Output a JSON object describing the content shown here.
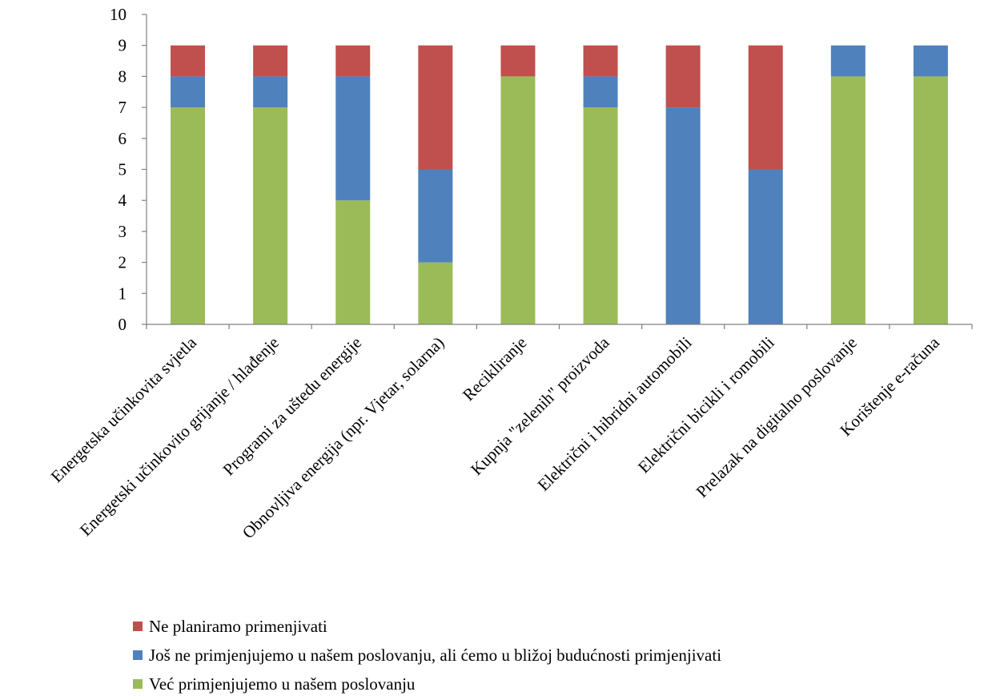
{
  "chart_data": {
    "type": "bar",
    "stacked": true,
    "title": "",
    "xlabel": "",
    "ylabel": "",
    "ylim": [
      0,
      10
    ],
    "yticks": [
      0,
      1,
      2,
      3,
      4,
      5,
      6,
      7,
      8,
      9,
      10
    ],
    "grid": false,
    "legend_position": "bottom",
    "categories": [
      "Energetska učinkovita svjetla",
      "Energetski učinkovito grijanje / hlađenje",
      "Programi za uštedu energije",
      "Obnovljiva energija (npr. Vjetar, solarna)",
      "Recikliranje",
      "Kupnja \"zelenih\" proizvoda",
      "Električni i hibridni automobili",
      "Električni bicikli i romobili",
      "Prelazak na digitalno poslovanje",
      "Korištenje e-računa"
    ],
    "series": [
      {
        "name": "Već primjenjujemo u našem poslovanju",
        "color": "#9bbb59",
        "values": [
          7,
          7,
          4,
          2,
          8,
          7,
          0,
          0,
          8,
          8
        ]
      },
      {
        "name": "Još ne primjenjujemo u našem poslovanju, ali ćemo u bližoj budućnosti primjenjivati",
        "color": "#4f81bd",
        "values": [
          1,
          1,
          4,
          3,
          0,
          1,
          7,
          5,
          1,
          1
        ]
      },
      {
        "name": "Ne planiramo primenjivati",
        "color": "#c0504d",
        "values": [
          1,
          1,
          1,
          4,
          1,
          1,
          2,
          4,
          0,
          0
        ]
      }
    ],
    "legend_order": [
      2,
      1,
      0
    ]
  }
}
